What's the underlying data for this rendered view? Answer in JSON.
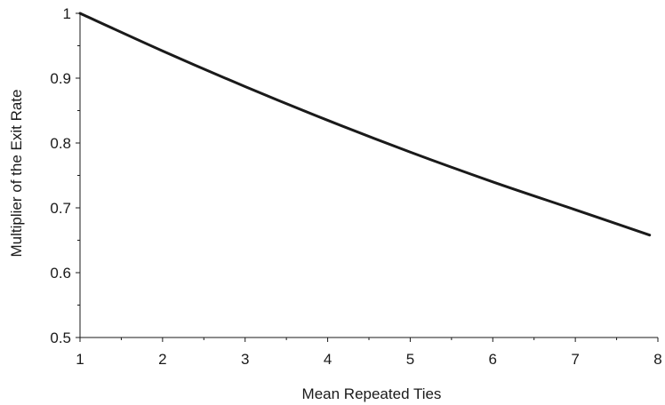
{
  "chart_data": {
    "type": "line",
    "title": "",
    "xlabel": "Mean Repeated Ties",
    "ylabel": "Multiplier of the Exit Rate",
    "xlim": [
      1,
      8
    ],
    "ylim": [
      0.5,
      1
    ],
    "x_ticks": [
      "1",
      "2",
      "3",
      "4",
      "5",
      "6",
      "7",
      "8"
    ],
    "y_ticks": [
      "0.5",
      "0.6",
      "0.7",
      "0.8",
      "0.9",
      "1"
    ],
    "grid": false,
    "legend": "none",
    "line_color": "#1a1a1a",
    "series": [
      {
        "x": [
          1,
          2,
          3,
          4,
          5,
          6,
          7,
          7.9
        ],
        "values": [
          1.0,
          0.942,
          0.887,
          0.835,
          0.786,
          0.74,
          0.697,
          0.658
        ]
      }
    ]
  }
}
